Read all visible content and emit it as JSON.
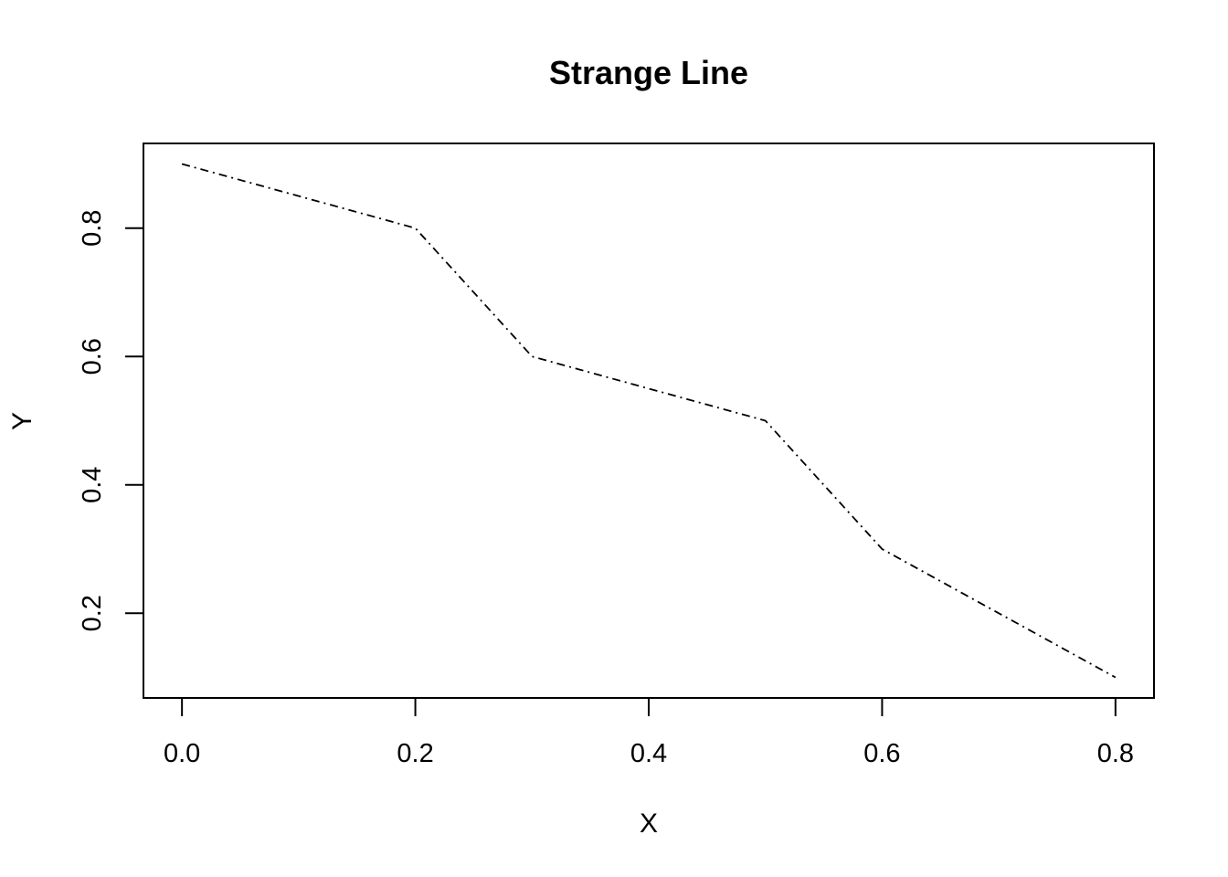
{
  "chart_data": {
    "type": "line",
    "title": "Strange Line",
    "xlabel": "X",
    "ylabel": "Y",
    "x": [
      0.0,
      0.2,
      0.3,
      0.5,
      0.6,
      0.8
    ],
    "series": [
      {
        "values": [
          0.9,
          0.8,
          0.6,
          0.5,
          0.3,
          0.1
        ],
        "color": "#000000",
        "line_style": "dotdash"
      }
    ],
    "xlim": [
      -0.033,
      0.833
    ],
    "ylim": [
      0.068,
      0.932
    ],
    "x_ticks": [
      0.0,
      0.2,
      0.4,
      0.6,
      0.8
    ],
    "x_tick_labels": [
      "0.0",
      "0.2",
      "0.4",
      "0.6",
      "0.8"
    ],
    "y_ticks": [
      0.2,
      0.4,
      0.6,
      0.8
    ],
    "y_tick_labels": [
      "0.2",
      "0.4",
      "0.6",
      "0.8"
    ],
    "grid": false,
    "legend": "none"
  }
}
